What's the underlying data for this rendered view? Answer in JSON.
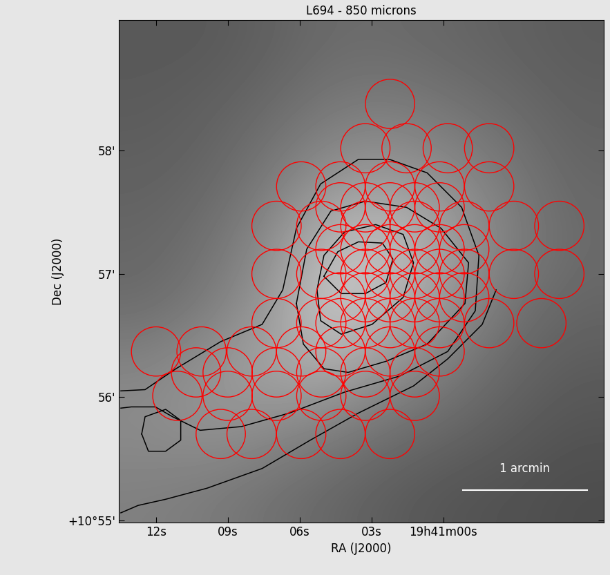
{
  "chart_data": {
    "type": "image",
    "title": "L694 - 850 microns",
    "x_label": "RA (J2000)",
    "y_label": "Dec (J2000)",
    "xlim": [
      13.55,
      -6.7
    ],
    "ylim": [
      54.98,
      59.06
    ],
    "xticks": [
      {
        "value": 12,
        "label": "12s"
      },
      {
        "value": 9,
        "label": "09s"
      },
      {
        "value": 6,
        "label": "06s"
      },
      {
        "value": 3,
        "label": "03s"
      },
      {
        "value": 0,
        "label": "19h41m00s"
      }
    ],
    "yticks": [
      {
        "value": 55,
        "label": "+10°55'"
      },
      {
        "value": 56,
        "label": "56'"
      },
      {
        "value": 57,
        "label": "57'"
      },
      {
        "value": 58,
        "label": "58'"
      }
    ],
    "image": [
      [
        0.35,
        0.35,
        0.38,
        0.42,
        0.42,
        0.4,
        0.38,
        0.36
      ],
      [
        0.36,
        0.38,
        0.42,
        0.48,
        0.5,
        0.46,
        0.42,
        0.38
      ],
      [
        0.38,
        0.4,
        0.48,
        0.58,
        0.6,
        0.55,
        0.47,
        0.4
      ],
      [
        0.4,
        0.44,
        0.55,
        0.72,
        0.75,
        0.62,
        0.5,
        0.42
      ],
      [
        0.42,
        0.48,
        0.6,
        0.8,
        0.72,
        0.58,
        0.45,
        0.4
      ],
      [
        0.52,
        0.58,
        0.65,
        0.68,
        0.58,
        0.48,
        0.4,
        0.36
      ],
      [
        0.55,
        0.58,
        0.55,
        0.5,
        0.44,
        0.4,
        0.36,
        0.33
      ],
      [
        0.5,
        0.48,
        0.44,
        0.4,
        0.36,
        0.33,
        0.32,
        0.3
      ]
    ],
    "color_range": [
      0,
      1
    ],
    "contours": {
      "color": "black",
      "lines": [
        [
          [
            4.99,
            56.98
          ],
          [
            4.41,
            57.18
          ],
          [
            3.55,
            57.26
          ],
          [
            2.55,
            57.25
          ],
          [
            2.11,
            57.12
          ],
          [
            2.4,
            56.93
          ],
          [
            3.26,
            56.84
          ],
          [
            4.27,
            56.84
          ],
          [
            4.99,
            56.98
          ]
        ],
        [
          [
            5.28,
            56.87
          ],
          [
            4.99,
            57.15
          ],
          [
            4.13,
            57.34
          ],
          [
            2.83,
            57.4
          ],
          [
            1.68,
            57.32
          ],
          [
            1.25,
            57.09
          ],
          [
            1.68,
            56.81
          ],
          [
            2.98,
            56.59
          ],
          [
            4.27,
            56.51
          ],
          [
            5.13,
            56.62
          ],
          [
            5.28,
            56.87
          ]
        ],
        [
          [
            6.14,
            56.76
          ],
          [
            5.71,
            57.2
          ],
          [
            4.7,
            57.51
          ],
          [
            3.26,
            57.59
          ],
          [
            1.54,
            57.54
          ],
          [
            0.1,
            57.37
          ],
          [
            -1.05,
            57.09
          ],
          [
            -0.9,
            56.76
          ],
          [
            0.68,
            56.43
          ],
          [
            2.4,
            56.29
          ],
          [
            3.98,
            56.2
          ],
          [
            4.99,
            56.23
          ],
          [
            5.85,
            56.43
          ],
          [
            6.14,
            56.76
          ]
        ],
        [
          [
            13.47,
            56.05
          ],
          [
            12.46,
            56.06
          ],
          [
            11.17,
            56.23
          ],
          [
            9.3,
            56.45
          ],
          [
            7.57,
            56.59
          ],
          [
            6.71,
            56.87
          ],
          [
            6.14,
            57.37
          ],
          [
            5.13,
            57.73
          ],
          [
            3.55,
            57.93
          ],
          [
            2.26,
            57.93
          ],
          [
            0.68,
            57.82
          ],
          [
            -0.76,
            57.54
          ],
          [
            -1.48,
            57.15
          ],
          [
            -1.33,
            56.7
          ],
          [
            -0.18,
            56.37
          ],
          [
            1.83,
            56.17
          ],
          [
            4.13,
            56.04
          ],
          [
            6.43,
            55.87
          ],
          [
            8.44,
            55.76
          ],
          [
            10.16,
            55.73
          ],
          [
            11.31,
            55.84
          ],
          [
            12.03,
            55.92
          ],
          [
            13.03,
            55.92
          ],
          [
            13.47,
            55.91
          ]
        ],
        [
          [
            12.6,
            55.7
          ],
          [
            12.46,
            55.84
          ],
          [
            11.6,
            55.9
          ],
          [
            10.97,
            55.81
          ],
          [
            10.97,
            55.65
          ],
          [
            11.6,
            55.56
          ],
          [
            12.32,
            55.56
          ],
          [
            12.6,
            55.7
          ]
        ],
        [
          [
            13.47,
            55.06
          ],
          [
            12.75,
            55.12
          ],
          [
            11.6,
            55.17
          ],
          [
            9.87,
            55.26
          ],
          [
            7.57,
            55.42
          ],
          [
            5.56,
            55.65
          ],
          [
            3.55,
            55.87
          ],
          [
            1.25,
            56.09
          ],
          [
            -0.18,
            56.31
          ],
          [
            -1.62,
            56.59
          ],
          [
            -2.2,
            56.87
          ]
        ]
      ]
    },
    "circles": {
      "color": "red",
      "radius": [
        1.03,
        0.2
      ],
      "centers": [
        [
          2.23,
          58.38
        ],
        [
          3.26,
          58.02
        ],
        [
          1.54,
          58.02
        ],
        [
          -0.18,
          58.02
        ],
        [
          -1.91,
          58.02
        ],
        [
          5.94,
          57.71
        ],
        [
          4.3,
          57.71
        ],
        [
          2.23,
          57.71
        ],
        [
          0.16,
          57.71
        ],
        [
          -1.91,
          57.71
        ],
        [
          4.3,
          57.54
        ],
        [
          3.26,
          57.54
        ],
        [
          2.23,
          57.54
        ],
        [
          1.2,
          57.54
        ],
        [
          0.16,
          57.54
        ],
        [
          6.97,
          57.39
        ],
        [
          5.1,
          57.39
        ],
        [
          3.26,
          57.39
        ],
        [
          1.2,
          57.39
        ],
        [
          -0.87,
          57.39
        ],
        [
          -2.94,
          57.39
        ],
        [
          -4.84,
          57.39
        ],
        [
          4.3,
          57.2
        ],
        [
          3.26,
          57.2
        ],
        [
          2.23,
          57.2
        ],
        [
          1.2,
          57.2
        ],
        [
          0.16,
          57.2
        ],
        [
          -0.87,
          57.2
        ],
        [
          6.97,
          57.0
        ],
        [
          5.1,
          57.0
        ],
        [
          3.26,
          57.0
        ],
        [
          2.23,
          57.0
        ],
        [
          1.2,
          57.0
        ],
        [
          0.16,
          57.0
        ],
        [
          -0.87,
          57.0
        ],
        [
          -2.94,
          57.0
        ],
        [
          -4.84,
          57.0
        ],
        [
          4.3,
          56.81
        ],
        [
          3.26,
          56.81
        ],
        [
          2.23,
          56.81
        ],
        [
          1.2,
          56.81
        ],
        [
          0.16,
          56.81
        ],
        [
          -0.87,
          56.81
        ],
        [
          6.97,
          56.6
        ],
        [
          5.1,
          56.6
        ],
        [
          4.3,
          56.6
        ],
        [
          3.26,
          56.6
        ],
        [
          2.23,
          56.6
        ],
        [
          1.2,
          56.6
        ],
        [
          0.16,
          56.6
        ],
        [
          -1.91,
          56.6
        ],
        [
          -4.09,
          56.6
        ],
        [
          12.0,
          56.37
        ],
        [
          10.1,
          56.37
        ],
        [
          8.01,
          56.37
        ],
        [
          5.94,
          56.37
        ],
        [
          4.3,
          56.37
        ],
        [
          2.23,
          56.37
        ],
        [
          0.16,
          56.37
        ],
        [
          10.33,
          56.2
        ],
        [
          9.01,
          56.2
        ],
        [
          6.97,
          56.2
        ],
        [
          5.1,
          56.2
        ],
        [
          3.26,
          56.2
        ],
        [
          1.2,
          56.2
        ],
        [
          11.11,
          56.01
        ],
        [
          9.01,
          56.01
        ],
        [
          6.97,
          56.01
        ],
        [
          5.1,
          56.01
        ],
        [
          3.26,
          56.01
        ],
        [
          1.2,
          56.01
        ],
        [
          9.3,
          55.7
        ],
        [
          8.01,
          55.7
        ],
        [
          5.94,
          55.7
        ],
        [
          4.3,
          55.7
        ],
        [
          2.23,
          55.7
        ]
      ]
    },
    "scale_bar": {
      "label": "1 arcmin",
      "length": 5.17
    }
  }
}
